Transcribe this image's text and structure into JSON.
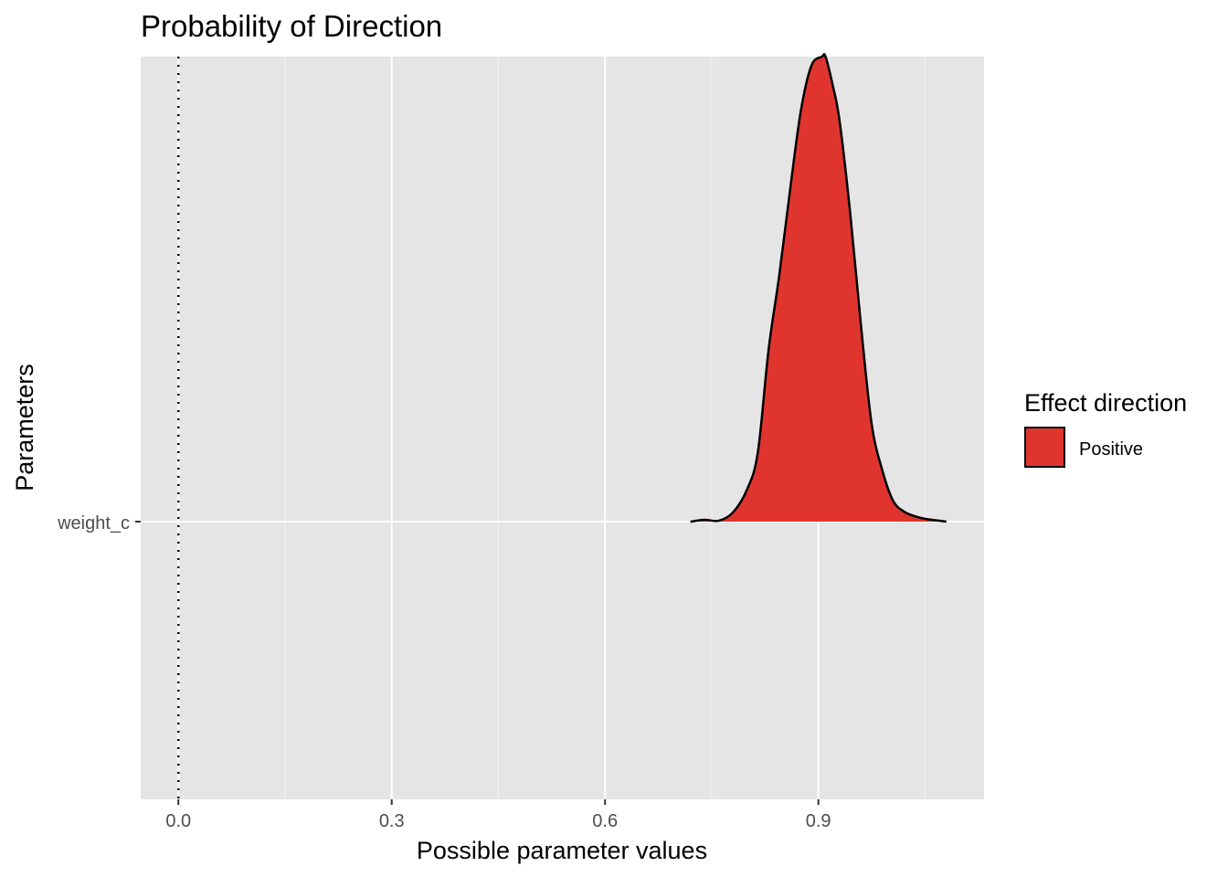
{
  "chart_data": {
    "type": "area",
    "title": "Probability of Direction",
    "xlabel": "Possible parameter values",
    "ylabel": "Parameters",
    "xlim": [
      -0.053,
      1.133
    ],
    "x_ticks": [
      0.0,
      0.3,
      0.6,
      0.9
    ],
    "x_tick_labels": [
      "0.0",
      "0.3",
      "0.6",
      "0.9"
    ],
    "y_categories": [
      "weight_c"
    ],
    "grid": true,
    "reference_line": {
      "x": 0,
      "style": "dotted"
    },
    "legend": {
      "title": "Effect direction",
      "placement": "right",
      "items": [
        {
          "label": "Positive",
          "color": "#E0352F"
        }
      ]
    },
    "series": [
      {
        "name": "Positive",
        "color": "#E0352F",
        "x": [
          0.72,
          0.74,
          0.76,
          0.78,
          0.8,
          0.815,
          0.83,
          0.845,
          0.86,
          0.875,
          0.89,
          0.905,
          0.91,
          0.92,
          0.93,
          0.945,
          0.96,
          0.975,
          0.99,
          1.005,
          1.02,
          1.035,
          1.05,
          1.065,
          1.08
        ],
        "density": [
          0.0,
          0.004,
          0.002,
          0.02,
          0.07,
          0.15,
          0.37,
          0.53,
          0.71,
          0.88,
          0.98,
          1.0,
          1.0,
          0.94,
          0.86,
          0.66,
          0.42,
          0.21,
          0.11,
          0.045,
          0.022,
          0.012,
          0.006,
          0.003,
          0.0
        ]
      }
    ]
  }
}
